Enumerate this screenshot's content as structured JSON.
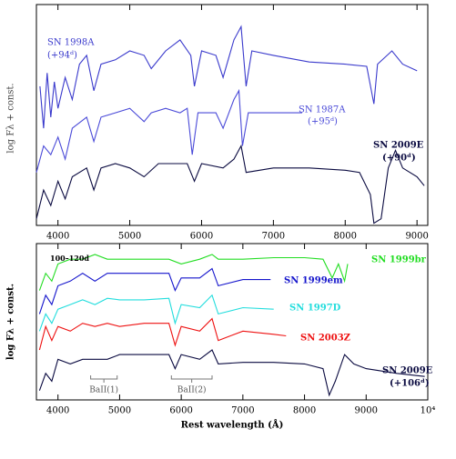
{
  "chart_data": [
    {
      "type": "line",
      "ylabel": "log Fλ + const.",
      "xlim": [
        3700,
        9150
      ],
      "xticks": [
        4000,
        5000,
        6000,
        7000,
        8000,
        9000
      ],
      "ylim": [
        0,
        10
      ],
      "series": [
        {
          "name": "SN 1998A",
          "note": "(+94ᵈ)",
          "color": "#3a3acc",
          "x": [
            3750,
            3800,
            3850,
            3900,
            3950,
            4000,
            4100,
            4200,
            4300,
            4400,
            4500,
            4600,
            4800,
            5000,
            5200,
            5300,
            5500,
            5700,
            5850,
            5900,
            6000,
            6200,
            6300,
            6450,
            6550,
            6620,
            6700,
            7000,
            7500,
            8000,
            8300,
            8400,
            8450,
            8650,
            8800,
            9000
          ],
          "values": [
            6.3,
            4.4,
            6.9,
            4.9,
            6.5,
            5.3,
            6.7,
            5.7,
            7.3,
            7.7,
            6.1,
            7.3,
            7.5,
            7.9,
            7.7,
            7.1,
            7.9,
            8.4,
            7.7,
            6.3,
            7.9,
            7.7,
            6.7,
            8.4,
            9.0,
            6.3,
            7.9,
            7.7,
            7.4,
            7.3,
            7.2,
            5.5,
            7.3,
            7.9,
            7.3,
            7.0
          ]
        },
        {
          "name": "SN 1987A",
          "note": "(+95ᵈ)",
          "color": "#4a4ad8",
          "x": [
            3700,
            3800,
            3900,
            4000,
            4100,
            4200,
            4400,
            4500,
            4600,
            4800,
            5000,
            5200,
            5300,
            5500,
            5700,
            5800,
            5870,
            5950,
            6200,
            6300,
            6450,
            6520,
            6570,
            6650,
            7000,
            7200,
            7400
          ],
          "values": [
            2.4,
            3.6,
            3.2,
            4.0,
            3.0,
            4.4,
            4.9,
            3.8,
            4.9,
            5.1,
            5.3,
            4.7,
            5.1,
            5.3,
            5.1,
            5.3,
            3.2,
            5.1,
            5.1,
            4.4,
            5.7,
            6.1,
            3.6,
            5.1,
            5.1,
            5.1,
            5.1
          ]
        },
        {
          "name": "SN 2009E",
          "note": "(+90ᵈ)",
          "color": "#0a0a40",
          "x": [
            3700,
            3800,
            3900,
            4000,
            4100,
            4200,
            4400,
            4500,
            4600,
            4800,
            5000,
            5200,
            5400,
            5600,
            5800,
            5900,
            6000,
            6300,
            6450,
            6550,
            6620,
            7000,
            7500,
            8000,
            8200,
            8350,
            8400,
            8500,
            8600,
            8700,
            8800,
            9000,
            9100
          ],
          "values": [
            0.3,
            1.6,
            0.9,
            2.0,
            1.2,
            2.2,
            2.6,
            1.6,
            2.6,
            2.8,
            2.6,
            2.2,
            2.8,
            2.8,
            2.8,
            2.0,
            2.8,
            2.6,
            3.0,
            3.6,
            2.4,
            2.6,
            2.6,
            2.5,
            2.4,
            1.4,
            0.1,
            0.3,
            2.6,
            3.4,
            2.6,
            2.2,
            1.8
          ]
        }
      ]
    },
    {
      "type": "line",
      "ylabel": "log Fλ + const.",
      "xlabel": "Rest wavelength (Å)",
      "xlim": [
        3650,
        10000
      ],
      "xticks": [
        4000,
        5000,
        6000,
        7000,
        8000,
        9000,
        {
          "value": 10000,
          "label": "10⁴"
        }
      ],
      "ylim": [
        0,
        10
      ],
      "annotations": [
        {
          "text": "100–120d"
        },
        {
          "text": "BaII(1)",
          "x": [
            4530,
            4960
          ]
        },
        {
          "text": "BaII(2)",
          "x": [
            5840,
            6500
          ]
        }
      ],
      "series": [
        {
          "name": "SN 1999br",
          "color": "#22dd22",
          "x": [
            3700,
            3800,
            3900,
            4000,
            4200,
            4400,
            4600,
            4800,
            5000,
            5400,
            5800,
            6000,
            6300,
            6500,
            6600,
            7000,
            7500,
            8000,
            8300,
            8450,
            8550,
            8650,
            8700
          ],
          "values": [
            7.0,
            8.1,
            7.6,
            8.7,
            9.0,
            9.0,
            9.3,
            9.0,
            9.0,
            9.0,
            9.0,
            8.7,
            9.0,
            9.3,
            9.0,
            9.0,
            9.1,
            9.1,
            9.0,
            7.8,
            8.7,
            7.6,
            8.7
          ]
        },
        {
          "name": "SN 1999em",
          "color": "#1515cc",
          "x": [
            3700,
            3800,
            3900,
            4000,
            4200,
            4400,
            4600,
            4800,
            5000,
            5400,
            5800,
            5900,
            6000,
            6300,
            6500,
            6600,
            7000,
            7450
          ],
          "values": [
            5.5,
            6.7,
            6.1,
            7.3,
            7.6,
            8.1,
            7.6,
            8.1,
            8.1,
            8.1,
            8.1,
            7.0,
            7.8,
            7.8,
            8.4,
            7.3,
            7.7,
            7.7
          ]
        },
        {
          "name": "SN 1997D",
          "color": "#22dddd",
          "x": [
            3700,
            3800,
            3900,
            4000,
            4200,
            4400,
            4600,
            4800,
            5000,
            5400,
            5800,
            5900,
            6000,
            6300,
            6500,
            6600,
            7000,
            7500
          ],
          "values": [
            4.4,
            5.5,
            4.9,
            5.8,
            6.1,
            6.4,
            6.1,
            6.5,
            6.4,
            6.4,
            6.5,
            4.9,
            6.1,
            5.9,
            6.7,
            5.5,
            5.9,
            5.8
          ]
        },
        {
          "name": "SN 2003Z",
          "color": "#ee1111",
          "x": [
            3700,
            3800,
            3900,
            4000,
            4200,
            4400,
            4600,
            4800,
            5000,
            5400,
            5800,
            5900,
            6000,
            6300,
            6500,
            6600,
            7000,
            7500,
            7700
          ],
          "values": [
            3.2,
            4.7,
            3.8,
            4.7,
            4.4,
            4.9,
            4.7,
            4.9,
            4.7,
            4.9,
            4.9,
            3.5,
            4.7,
            4.4,
            5.2,
            3.8,
            4.4,
            4.2,
            4.1
          ]
        },
        {
          "name": "SN 2009E",
          "note": "(+106ᵈ)",
          "color": "#0a0a40",
          "x": [
            3700,
            3800,
            3900,
            4000,
            4200,
            4400,
            4600,
            4800,
            5000,
            5400,
            5800,
            5900,
            6000,
            6300,
            6500,
            6600,
            7000,
            7500,
            8000,
            8300,
            8400,
            8500,
            8650,
            8800,
            9000,
            9500,
            9950
          ],
          "values": [
            0.6,
            1.7,
            1.2,
            2.6,
            2.3,
            2.6,
            2.6,
            2.6,
            2.9,
            2.9,
            2.9,
            2.0,
            2.9,
            2.6,
            3.2,
            2.3,
            2.4,
            2.4,
            2.3,
            2.0,
            0.3,
            1.2,
            2.9,
            2.3,
            2.0,
            1.7,
            1.5
          ]
        }
      ]
    }
  ]
}
